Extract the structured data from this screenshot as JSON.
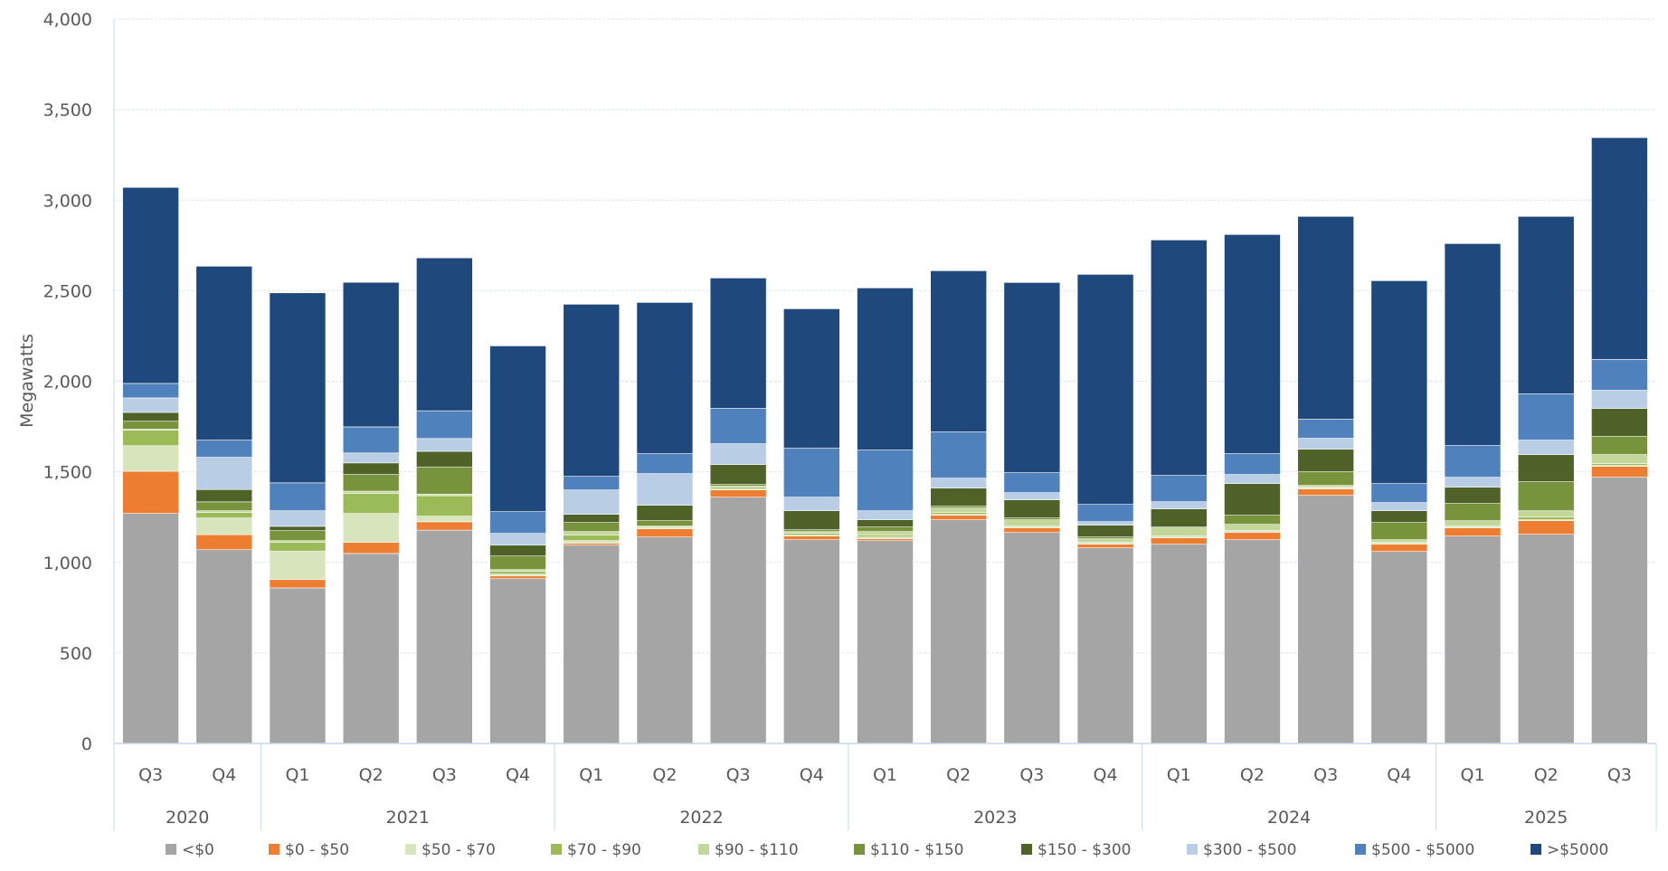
{
  "chart_data": {
    "type": "bar",
    "stacked": true,
    "title": "",
    "xlabel": "",
    "ylabel": "Megawatts",
    "ylim": [
      0,
      4000
    ],
    "yticks": [
      0,
      500,
      1000,
      1500,
      2000,
      2500,
      3000,
      3500,
      4000
    ],
    "ytick_labels": [
      "0",
      "500",
      "1,000",
      "1,500",
      "2,000",
      "2,500",
      "3,000",
      "3,500",
      "4,000"
    ],
    "grid": true,
    "legend_position": "bottom",
    "categories": [
      "Q3",
      "Q4",
      "Q1",
      "Q2",
      "Q3",
      "Q4",
      "Q1",
      "Q2",
      "Q3",
      "Q4",
      "Q1",
      "Q2",
      "Q3",
      "Q4",
      "Q1",
      "Q2",
      "Q3",
      "Q4",
      "Q1",
      "Q2",
      "Q3"
    ],
    "years": [
      {
        "label": "2020",
        "count": 2
      },
      {
        "label": "2021",
        "count": 4
      },
      {
        "label": "2022",
        "count": 4
      },
      {
        "label": "2023",
        "count": 4
      },
      {
        "label": "2024",
        "count": 4
      },
      {
        "label": "2025",
        "count": 3
      }
    ],
    "series": [
      {
        "name": "<$0",
        "color": "#A5A5A5",
        "values": [
          1270,
          1070,
          859,
          1049,
          1178,
          910,
          1095,
          1140,
          1360,
          1125,
          1120,
          1235,
          1165,
          1080,
          1100,
          1125,
          1370,
          1060,
          1145,
          1155,
          1470
        ]
      },
      {
        "name": "$0 - $50",
        "color": "#ED7D31",
        "values": [
          233,
          83,
          46,
          61,
          46,
          15,
          10,
          45,
          40,
          20,
          10,
          25,
          25,
          20,
          35,
          40,
          35,
          40,
          45,
          75,
          60
        ]
      },
      {
        "name": "$50 - $70",
        "color": "#D8E4BC",
        "values": [
          141,
          92,
          156,
          160,
          31,
          10,
          15,
          5,
          5,
          5,
          10,
          5,
          5,
          5,
          5,
          5,
          5,
          5,
          5,
          5,
          5
        ]
      },
      {
        "name": "$70 - $90",
        "color": "#9BBB59",
        "values": [
          86,
          31,
          49,
          110,
          113,
          15,
          30,
          5,
          10,
          10,
          10,
          10,
          5,
          5,
          5,
          5,
          5,
          5,
          5,
          15,
          10
        ]
      },
      {
        "name": "$90 - $110",
        "color": "#C4D79B",
        "values": [
          5,
          9,
          10,
          13,
          9,
          10,
          20,
          5,
          5,
          10,
          20,
          25,
          35,
          20,
          45,
          35,
          10,
          15,
          30,
          35,
          50
        ]
      },
      {
        "name": "$110 - $150",
        "color": "#77933C",
        "values": [
          44,
          49,
          55,
          92,
          148,
          75,
          50,
          30,
          10,
          10,
          25,
          10,
          10,
          10,
          5,
          50,
          75,
          95,
          95,
          160,
          100
        ]
      },
      {
        "name": "$150 - $300",
        "color": "#4F6228",
        "values": [
          49,
          68,
          24,
          64,
          88,
          60,
          45,
          85,
          110,
          105,
          40,
          100,
          100,
          65,
          100,
          175,
          125,
          65,
          90,
          150,
          155
        ]
      },
      {
        "name": "$300 - $500",
        "color": "#B9CDE5",
        "values": [
          80,
          178,
          86,
          55,
          71,
          65,
          135,
          175,
          115,
          75,
          50,
          55,
          40,
          20,
          40,
          50,
          60,
          45,
          55,
          80,
          100
        ]
      },
      {
        "name": "$500 - $5000",
        "color": "#4F81BD",
        "values": [
          80,
          95,
          154,
          144,
          153,
          120,
          75,
          110,
          195,
          270,
          335,
          255,
          110,
          95,
          145,
          115,
          105,
          105,
          175,
          255,
          170
        ]
      },
      {
        "name": ">$5000",
        "color": "#1F497D",
        "values": [
          1082,
          960,
          1049,
          798,
          844,
          915,
          950,
          835,
          720,
          770,
          895,
          890,
          1050,
          1270,
          1300,
          1210,
          1120,
          1120,
          1115,
          980,
          1225
        ]
      }
    ]
  }
}
